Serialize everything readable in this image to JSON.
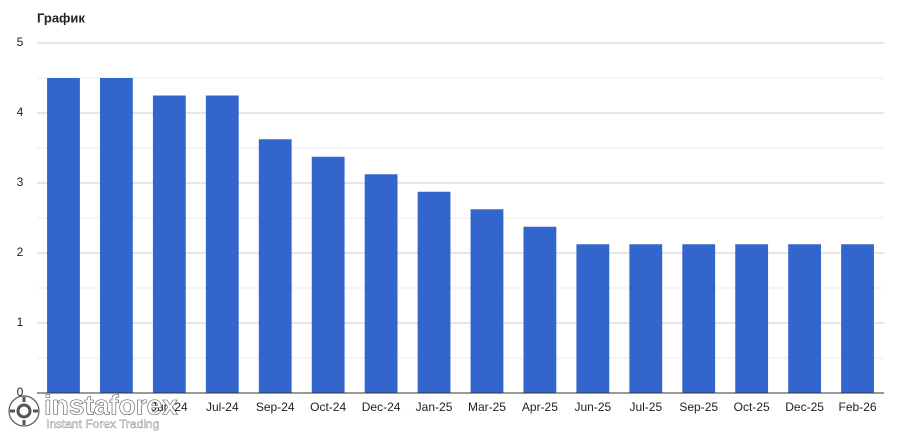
{
  "chart_data": {
    "type": "bar",
    "title": "График",
    "categories": [
      null,
      null,
      "Jun-24",
      "Jul-24",
      "Sep-24",
      "Oct-24",
      "Dec-24",
      "Jan-25",
      "Mar-25",
      "Apr-25",
      "Jun-25",
      "Jul-25",
      "Sep-25",
      "Oct-25",
      "Dec-25",
      "Feb-26"
    ],
    "values": [
      4.5,
      4.5,
      4.25,
      4.25,
      3.625,
      3.375,
      3.125,
      2.875,
      2.625,
      2.375,
      2.125,
      2.125,
      2.125,
      2.125,
      2.125,
      2.125
    ],
    "color": "#3366cc",
    "ylim": [
      0,
      5
    ],
    "yticks": [
      0,
      1,
      2,
      3,
      4,
      5
    ],
    "yminor": [
      0.5,
      1.5,
      2.5,
      3.5,
      4.5
    ],
    "grid": true
  },
  "watermark": {
    "name": "instaforex",
    "tagline": "Instant Forex Trading"
  }
}
